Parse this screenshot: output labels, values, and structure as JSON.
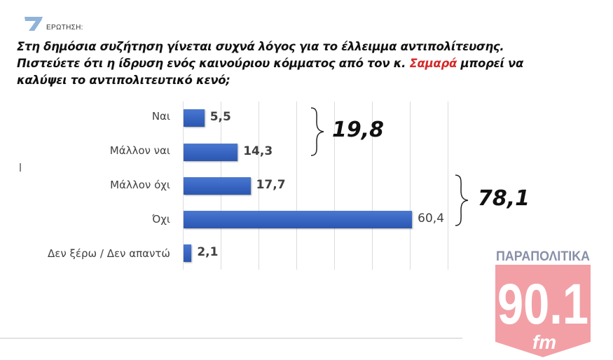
{
  "header": {
    "question_number": "7",
    "question_label": "ΕΡΩΤΗΣΗ:",
    "question_text_part1": "Στη δημόσια συζήτηση γίνεται συχνά λόγος για το έλλειμμα αντιπολίτευσης. Πιστεύετε ότι η ίδρυση ενός καινούριου κόμματος από τον κ. ",
    "question_highlight": "Σαμαρά",
    "question_text_part2": " μπορεί να καλύψει το αντιπολιτευτικό κενό;",
    "highlight_color": "#d42a2a"
  },
  "chart_data": {
    "type": "bar",
    "orientation": "horizontal",
    "title": "Στη δημόσια συζήτηση γίνεται συχνά λόγος για το έλλειμμα αντιπολίτευσης. Πιστεύετε ότι η ίδρυση ενός καινούριου κόμματος από τον κ. Σαμαρά μπορεί να καλύψει το αντιπολιτευτικό κενό;",
    "categories": [
      "Ναι",
      "Μάλλον ναι",
      "Μάλλον όχι",
      "Όχι",
      "Δεν ξέρω / Δεν απαντώ"
    ],
    "values": [
      5.5,
      14.3,
      17.7,
      60.4,
      2.1
    ],
    "value_labels": [
      "5,5",
      "14,3",
      "17,7",
      "60,4",
      "2,1"
    ],
    "xlabel": "",
    "ylabel": "",
    "xlim": [
      0,
      70
    ],
    "grid": true,
    "bar_color": "#3866c2",
    "annotations": [
      {
        "text": "19,8",
        "groups": [
          "Ναι",
          "Μάλλον ναι"
        ]
      },
      {
        "text": "78,1",
        "groups": [
          "Μάλλον όχι",
          "Όχι"
        ]
      }
    ]
  },
  "logo": {
    "top_text": "ΠΑΡΑΠΟΛΙΤΙΚΑ",
    "frequency": "90.1",
    "band": "fm"
  }
}
